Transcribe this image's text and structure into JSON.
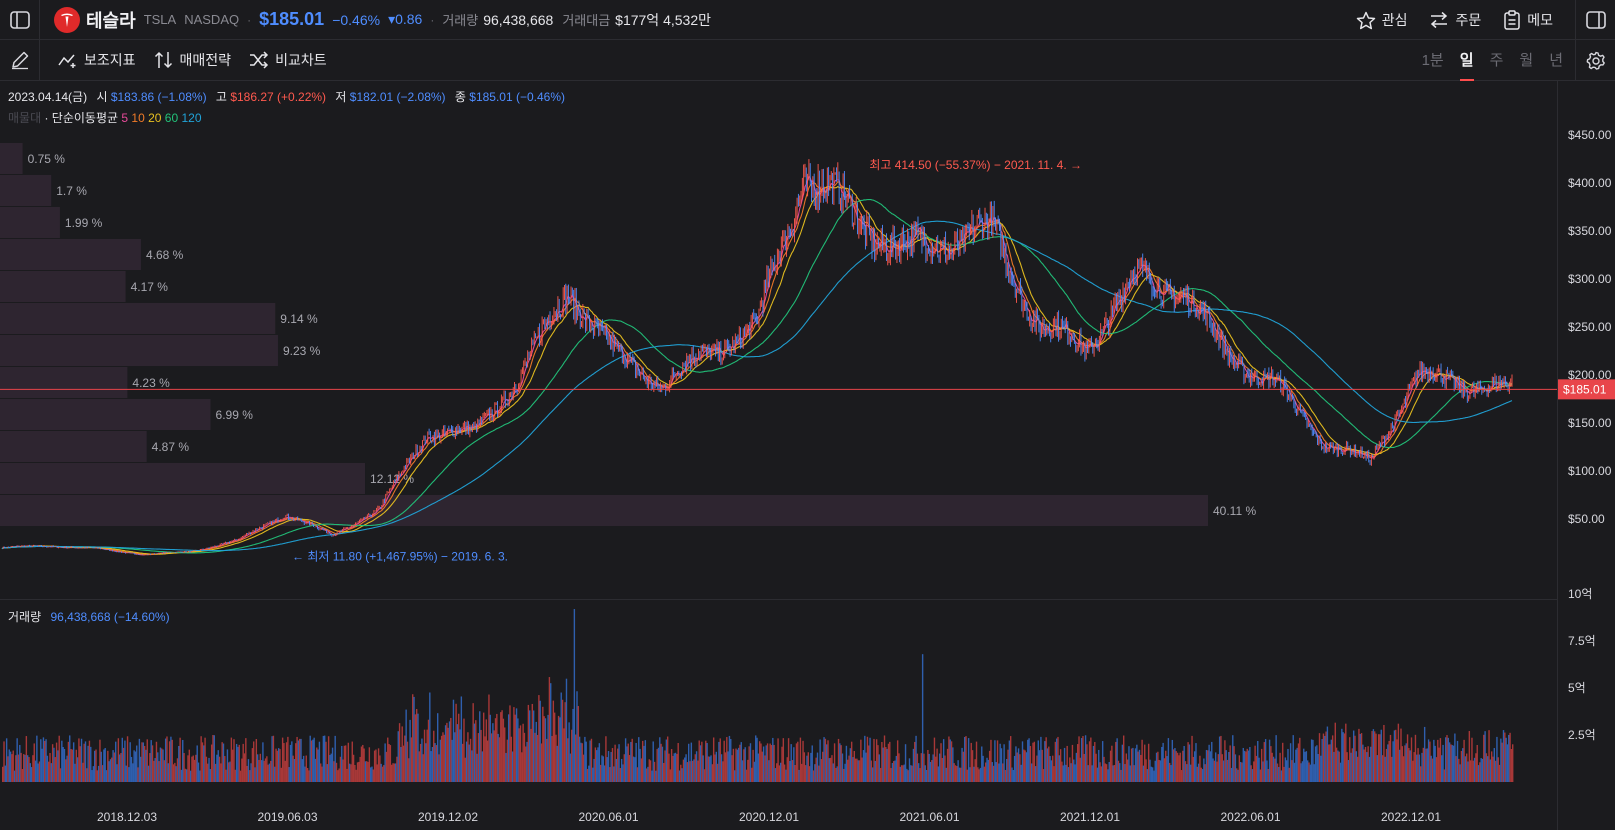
{
  "header": {
    "stock_name": "테슬라",
    "ticker": "TSLA",
    "exchange": "NASDAQ",
    "price": "$185.01",
    "change_pct": "−0.46%",
    "change_abs": "▾0.86",
    "volume_label": "거래량",
    "volume_value": "96,438,668",
    "amount_label": "거래대금",
    "amount_value": "$177억 4,532만",
    "actions": {
      "watch": "관심",
      "order": "주문",
      "memo": "메모"
    }
  },
  "toolbar": {
    "indicators": "보조지표",
    "strategy": "매매전략",
    "compare": "비교차트",
    "periods": [
      "1분",
      "일",
      "주",
      "월",
      "년"
    ],
    "active_period": "일"
  },
  "ohlc": {
    "date": "2023.04.14(금)",
    "open_label": "시",
    "open": "$183.86 (−1.08%)",
    "high_label": "고",
    "high": "$186.27 (+0.22%)",
    "low_label": "저",
    "low": "$182.01 (−2.08%)",
    "close_label": "종",
    "close": "$185.01 (−0.46%)"
  },
  "ma_legend": {
    "volume_profile_label": "매물대",
    "ma_label": "· 단순이동평균",
    "periods": [
      {
        "label": "5",
        "color": "#e84a9a"
      },
      {
        "label": "10",
        "color": "#f07a28"
      },
      {
        "label": "20",
        "color": "#e8c020"
      },
      {
        "label": "60",
        "color": "#22c27a"
      },
      {
        "label": "120",
        "color": "#21a3d8"
      }
    ]
  },
  "volume_legend": {
    "label": "거래량",
    "value": "96,438,668 (−14.60%)"
  },
  "colors": {
    "up": "#ff5a4f",
    "down": "#4f8dff",
    "bg": "#1b1b1e",
    "profile": "#2e2530",
    "current_line": "#e8454a"
  },
  "chart_data": {
    "type": "candlestick",
    "title": "",
    "price_axis": {
      "ticks": [
        "$450.00",
        "$400.00",
        "$350.00",
        "$300.00",
        "$250.00",
        "$200.00",
        "$150.00",
        "$100.00",
        "$50.00"
      ],
      "tick_values": [
        450,
        400,
        350,
        300,
        250,
        200,
        150,
        100,
        50
      ]
    },
    "volume_axis": {
      "ticks": [
        "10억",
        "7.5억",
        "5억",
        "2.5억"
      ],
      "tick_values": [
        10,
        7.5,
        5,
        2.5
      ]
    },
    "x_ticks": [
      "2018.12.03",
      "2019.06.03",
      "2019.12.02",
      "2020.06.01",
      "2020.12.01",
      "2021.06.01",
      "2021.12.01",
      "2022.06.01",
      "2022.12.01"
    ],
    "current_price": 185.01,
    "current_price_label": "$185.01",
    "high_annotation": "최고 414.50 (−55.37%) − 2021. 11. 4. →",
    "high_value": 414.5,
    "low_annotation": "← 최저 11.80 (+1,467.95%) − 2019. 6. 3.",
    "low_value": 11.8,
    "volume_profile": [
      {
        "label": "0.75 %",
        "pct": 0.75
      },
      {
        "label": "1.7 %",
        "pct": 1.7
      },
      {
        "label": "1.99 %",
        "pct": 1.99
      },
      {
        "label": "4.68 %",
        "pct": 4.68
      },
      {
        "label": "4.17 %",
        "pct": 4.17
      },
      {
        "label": "9.14 %",
        "pct": 9.14
      },
      {
        "label": "9.23 %",
        "pct": 9.23
      },
      {
        "label": "4.23 %",
        "pct": 4.23
      },
      {
        "label": "6.99 %",
        "pct": 6.99
      },
      {
        "label": "4.87 %",
        "pct": 4.87
      },
      {
        "label": "12.12 %",
        "pct": 12.12
      },
      {
        "label": "40.11 %",
        "pct": 40.11
      }
    ],
    "price_path": {
      "dates": [
        "2018.09",
        "2018.12",
        "2019.03",
        "2019.06",
        "2019.09",
        "2019.12",
        "2020.02",
        "2020.03",
        "2020.06",
        "2020.08",
        "2020.10",
        "2020.12",
        "2021.01",
        "2021.03",
        "2021.05",
        "2021.07",
        "2021.09",
        "2021.11",
        "2021.12",
        "2022.01",
        "2022.03",
        "2022.04",
        "2022.05",
        "2022.06",
        "2022.08",
        "2022.09",
        "2022.10",
        "2022.11",
        "2022.12",
        "2023.01",
        "2023.02",
        "2023.03",
        "2023.04"
      ],
      "close": [
        20,
        22,
        19,
        13,
        16,
        28,
        55,
        33,
        60,
        140,
        140,
        200,
        290,
        220,
        190,
        225,
        250,
        410,
        370,
        330,
        340,
        350,
        250,
        230,
        300,
        290,
        220,
        190,
        130,
        110,
        200,
        190,
        185
      ]
    },
    "ma_periods": [
      5,
      10,
      20,
      60,
      120
    ]
  }
}
